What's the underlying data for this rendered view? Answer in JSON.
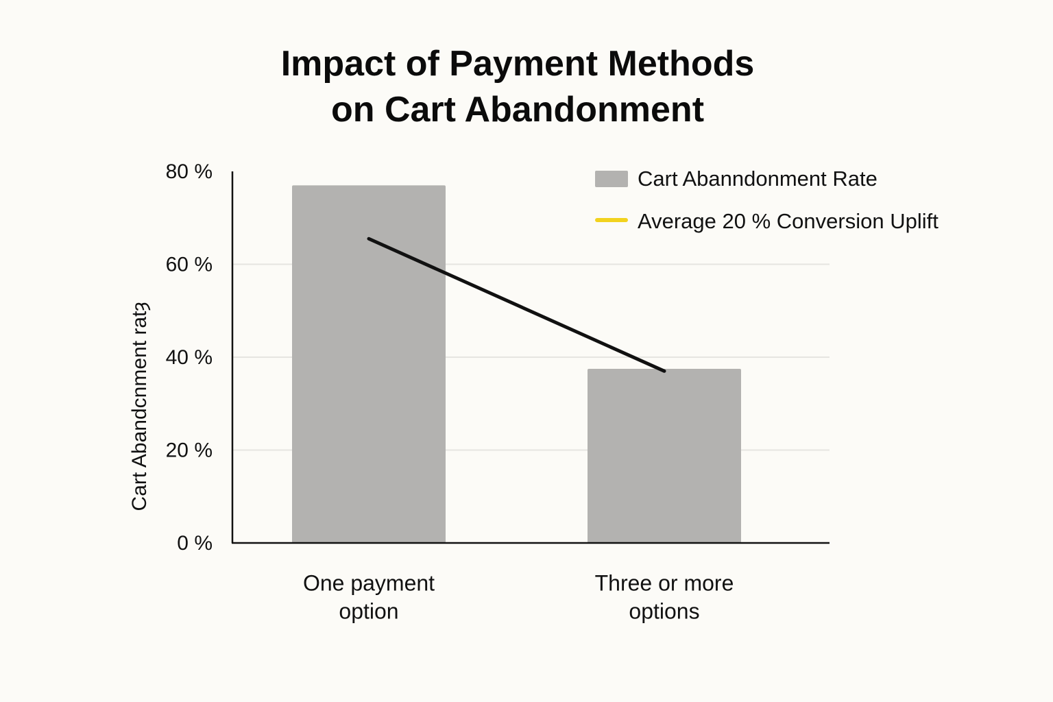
{
  "chart_data": {
    "type": "bar",
    "title": [
      "Impact of Payment Methods",
      "on Cart Abandonment"
    ],
    "xlabel": "",
    "ylabel": "Cart Abandcnment ratȝ",
    "ylim": [
      0,
      80
    ],
    "yticks": [
      0,
      20,
      40,
      60,
      80
    ],
    "ytick_labels": [
      "0 %",
      "20 %",
      "40 %",
      "60 %",
      "80 %"
    ],
    "categories": [
      [
        "One payment",
        "option"
      ],
      [
        "Three or more",
        "options"
      ]
    ],
    "series": [
      {
        "name": "Cart Abanndonment Rate",
        "type": "bar",
        "values": [
          77,
          37.5
        ],
        "color": "#b3b2b0"
      },
      {
        "name": "Average 20 % Conversion Uplift",
        "type": "line",
        "values": [
          65.5,
          37
        ],
        "color": "#111111",
        "legend_color": "#f2d21e"
      }
    ],
    "grid": true,
    "legend_position": "top-right"
  }
}
